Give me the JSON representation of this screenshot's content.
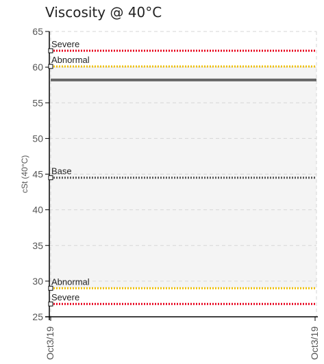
{
  "chart_data": {
    "type": "line",
    "title": "Viscosity @ 40°C",
    "xlabel": "",
    "ylabel": "cSt (40°C)",
    "ylim": [
      25,
      65
    ],
    "yticks": [
      25,
      30,
      35,
      40,
      45,
      50,
      55,
      60,
      65
    ],
    "x_categories": [
      "Oct3/19",
      "Oct3/19"
    ],
    "grid": true,
    "measurement": {
      "value": 58.2
    },
    "reference_lines": [
      {
        "label": "Severe",
        "value": 62.3,
        "color": "#e8001c",
        "style": "dotted"
      },
      {
        "label": "Abnormal",
        "value": 60.1,
        "color": "#f0c000",
        "style": "dotted"
      },
      {
        "label": "Base",
        "value": 44.5,
        "color": "#555555",
        "style": "dotted"
      },
      {
        "label": "Abnormal",
        "value": 29.0,
        "color": "#f0c000",
        "style": "dotted"
      },
      {
        "label": "Severe",
        "value": 26.8,
        "color": "#e8001c",
        "style": "dotted"
      }
    ],
    "band_color": "#f4f4f4",
    "measurement_color": "#666666"
  }
}
